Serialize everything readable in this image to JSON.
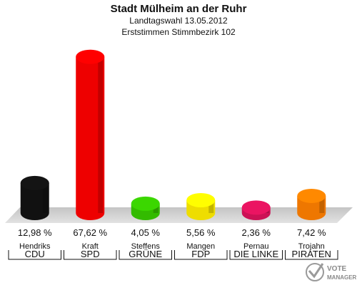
{
  "chart_data": {
    "type": "bar",
    "title": "Stadt Mülheim an der Ruhr",
    "subtitle_1": "Landtagswahl 13.05.2012",
    "subtitle_2": "Erststimmen Stimmbezirk 102",
    "ylim": [
      0,
      70
    ],
    "categories": [
      "CDU",
      "SPD",
      "GRÜNE",
      "FDP",
      "DIE LINKE",
      "PIRATEN"
    ],
    "candidates": [
      "Hendriks",
      "Kraft",
      "Steffens",
      "Mangen",
      "Pernau",
      "Trojahn"
    ],
    "values": [
      12.98,
      67.62,
      4.05,
      5.56,
      2.36,
      7.42
    ],
    "value_labels": [
      "12,98 %",
      "67,62 %",
      "4,05 %",
      "5,56 %",
      "2,36 %",
      "7,42 %"
    ],
    "colors": [
      "#111111",
      "#ee0000",
      "#33bb00",
      "#eedd00",
      "#cc1155",
      "#ee7700"
    ]
  },
  "logo": {
    "name": "vote-manager-logo",
    "line1": "VOTE",
    "line2": "MANAGER"
  }
}
